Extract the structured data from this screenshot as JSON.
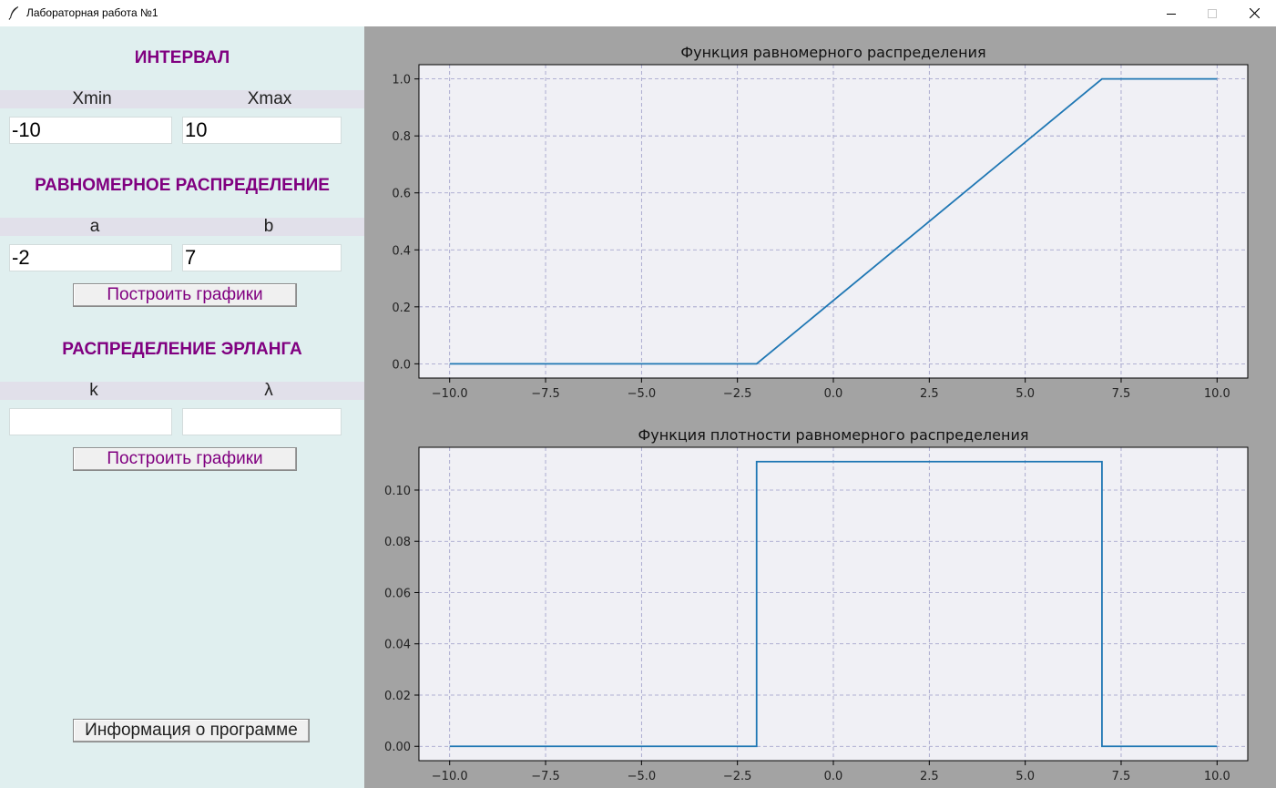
{
  "window": {
    "title": "Лабораторная работа №1",
    "icon": "feather-icon",
    "controls": [
      "minimize-icon",
      "maximize-icon",
      "close-icon"
    ]
  },
  "left_panel": {
    "interval": {
      "title": "ИНТЕРВАЛ",
      "xmin_label": "Xmin",
      "xmax_label": "Xmax",
      "xmin_value": "-10",
      "xmax_value": "10"
    },
    "uniform": {
      "title": "РАВНОМЕРНОЕ РАСПРЕДЕЛЕНИЕ",
      "a_label": "a",
      "b_label": "b",
      "a_value": "-2",
      "b_value": "7",
      "build_button": "Построить графики"
    },
    "erlang": {
      "title": "РАСПРЕДЕЛЕНИЕ ЭРЛАНГА",
      "k_label": "k",
      "lambda_label": "λ",
      "k_value": "",
      "lambda_value": "",
      "build_button": "Построить графики"
    },
    "info_button": "Информация о программе"
  },
  "colors": {
    "accent_text": "#800080",
    "line": "#1f77b4",
    "plot_background": "#f0f0f5",
    "grid": "#9a9ac6",
    "panel_left": "#e0efef",
    "panel_right": "#a3a3a3"
  },
  "chart_data": [
    {
      "type": "line",
      "title": "Функция равномерного распределения",
      "xlabel": "",
      "ylabel": "",
      "xlim": [
        -10.8,
        10.8
      ],
      "ylim": [
        -0.05,
        1.05
      ],
      "xticks": [
        "−10.0",
        "−7.5",
        "−5.0",
        "−2.5",
        "0.0",
        "2.5",
        "5.0",
        "7.5",
        "10.0"
      ],
      "xtick_values": [
        -10,
        -7.5,
        -5,
        -2.5,
        0,
        2.5,
        5,
        7.5,
        10
      ],
      "yticks": [
        "0.0",
        "0.2",
        "0.4",
        "0.6",
        "0.8",
        "1.0"
      ],
      "ytick_values": [
        0,
        0.2,
        0.4,
        0.6,
        0.8,
        1.0
      ],
      "grid": true,
      "series": [
        {
          "x": [
            -10,
            -2,
            7,
            10
          ],
          "y": [
            0,
            0,
            1,
            1
          ]
        }
      ]
    },
    {
      "type": "line",
      "title": "Функция плотности равномерного распределения",
      "xlabel": "",
      "ylabel": "",
      "xlim": [
        -10.8,
        10.8
      ],
      "ylim": [
        -0.0056,
        0.1167
      ],
      "xticks": [
        "−10.0",
        "−7.5",
        "−5.0",
        "−2.5",
        "0.0",
        "2.5",
        "5.0",
        "7.5",
        "10.0"
      ],
      "xtick_values": [
        -10,
        -7.5,
        -5,
        -2.5,
        0,
        2.5,
        5,
        7.5,
        10
      ],
      "yticks": [
        "0.00",
        "0.02",
        "0.04",
        "0.06",
        "0.08",
        "0.10"
      ],
      "ytick_values": [
        0,
        0.02,
        0.04,
        0.06,
        0.08,
        0.1
      ],
      "grid": true,
      "series": [
        {
          "x": [
            -10,
            -2,
            -2,
            7,
            7,
            10
          ],
          "y": [
            0,
            0,
            0.1111,
            0.1111,
            0,
            0
          ]
        }
      ]
    }
  ]
}
